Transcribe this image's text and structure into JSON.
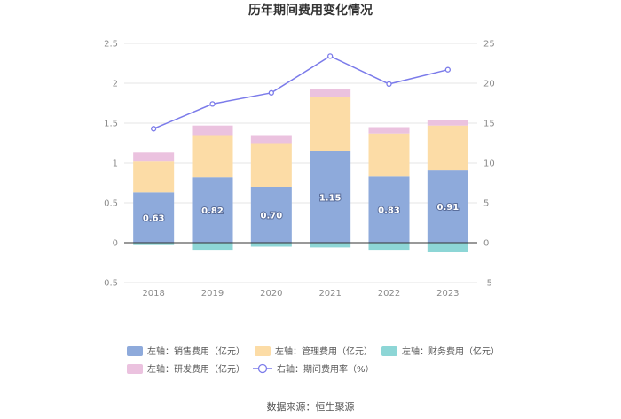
{
  "chart_data": {
    "type": "bar",
    "title": "历年期间费用变化情况",
    "categories": [
      "2018",
      "2019",
      "2020",
      "2021",
      "2022",
      "2023"
    ],
    "series": [
      {
        "name": "左轴：销售费用（亿元）",
        "axis": "left",
        "color": "#8eaadb",
        "values": [
          0.63,
          0.82,
          0.7,
          1.15,
          0.83,
          0.91
        ],
        "labels": [
          "0.63",
          "0.82",
          "0.70",
          "1.15",
          "0.83",
          "0.91"
        ]
      },
      {
        "name": "左轴：管理费用（亿元）",
        "axis": "left",
        "color": "#fcdca6",
        "values": [
          0.39,
          0.53,
          0.55,
          0.68,
          0.54,
          0.56
        ]
      },
      {
        "name": "左轴：财务费用（亿元）",
        "axis": "left",
        "color": "#8dd6d6",
        "values": [
          -0.03,
          -0.09,
          -0.05,
          -0.06,
          -0.09,
          -0.12
        ]
      },
      {
        "name": "左轴：研发费用（亿元）",
        "axis": "left",
        "color": "#ebc2df",
        "values": [
          0.11,
          0.12,
          0.1,
          0.1,
          0.08,
          0.07
        ]
      },
      {
        "name": "右轴：期间费用率（%）",
        "axis": "right",
        "type": "line",
        "color": "#7b7bea",
        "values": [
          14.3,
          17.4,
          18.8,
          23.4,
          19.9,
          21.7
        ]
      }
    ],
    "left_axis": {
      "ylim": [
        -0.5,
        2.5
      ],
      "ticks": [
        "-0.5",
        "0",
        "0.5",
        "1",
        "1.5",
        "2",
        "2.5"
      ]
    },
    "right_axis": {
      "ylim": [
        -5,
        25
      ],
      "ticks": [
        "-5",
        "0",
        "5",
        "10",
        "15",
        "20",
        "25"
      ]
    },
    "grid": true,
    "legend_position": "bottom",
    "source": "数据来源：恒生聚源"
  }
}
